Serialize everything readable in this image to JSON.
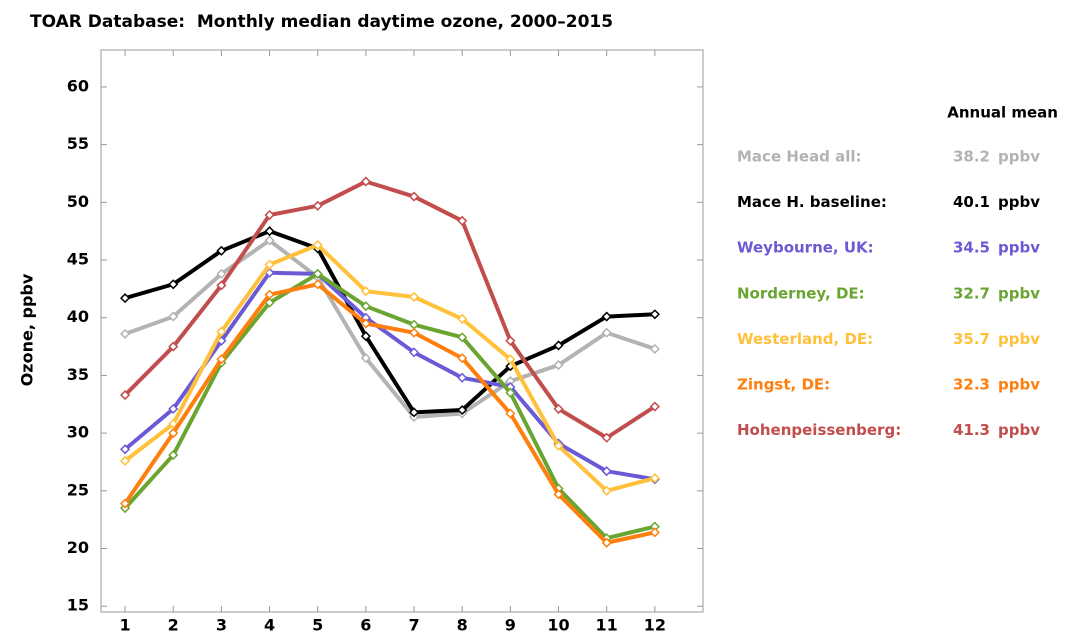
{
  "chart_data": {
    "type": "line",
    "title": "TOAR Database:  Monthly median daytime ozone, 2000–2015",
    "y_label": "Ozone, ppbv",
    "legend_title": "Annual mean",
    "annual_mean_unit": "ppbv",
    "x": [
      1,
      2,
      3,
      4,
      5,
      6,
      7,
      8,
      9,
      10,
      11,
      12
    ],
    "xlim": [
      0.5,
      13
    ],
    "xticks": [
      1,
      2,
      3,
      4,
      5,
      6,
      7,
      8,
      9,
      10,
      11,
      12
    ],
    "ylim": [
      14.5,
      63.2
    ],
    "yticks": [
      15,
      20,
      25,
      30,
      35,
      40,
      45,
      50,
      55,
      60
    ],
    "grid": false,
    "series": [
      {
        "name": "Mace Head all:",
        "color": "#b3b3b3",
        "annual_mean": 38.2,
        "values": [
          38.6,
          40.1,
          43.8,
          46.7,
          43.5,
          36.5,
          31.4,
          31.7,
          34.5,
          35.9,
          38.7,
          37.3
        ]
      },
      {
        "name": "Mace H. baseline:",
        "color": "#000000",
        "annual_mean": 40.1,
        "values": [
          41.7,
          42.9,
          45.8,
          47.5,
          46.0,
          38.4,
          31.8,
          32.0,
          35.8,
          37.6,
          40.1,
          40.3
        ]
      },
      {
        "name": "Weybourne, UK:",
        "color": "#6b5ad6",
        "annual_mean": 34.5,
        "values": [
          28.6,
          32.1,
          38.0,
          43.9,
          43.8,
          40.0,
          37.0,
          34.8,
          34.0,
          29.1,
          26.7,
          26.0
        ]
      },
      {
        "name": "Norderney, DE:",
        "color": "#6aa531",
        "annual_mean": 32.7,
        "values": [
          23.5,
          28.1,
          36.1,
          41.3,
          43.8,
          41.0,
          39.4,
          38.3,
          33.5,
          25.2,
          20.9,
          21.9
        ]
      },
      {
        "name": "Westerland, DE:",
        "color": "#ffc03a",
        "annual_mean": 35.7,
        "values": [
          27.6,
          30.8,
          38.8,
          44.6,
          46.3,
          42.3,
          41.8,
          39.9,
          36.4,
          28.9,
          25.0,
          26.1
        ]
      },
      {
        "name": "Zingst, DE:",
        "color": "#ff7f0e",
        "annual_mean": 32.3,
        "values": [
          23.9,
          30.0,
          36.4,
          42.0,
          42.9,
          39.5,
          38.7,
          36.5,
          31.7,
          24.7,
          20.5,
          21.4
        ]
      },
      {
        "name": "Hohenpeissenberg:",
        "color": "#c24d4d",
        "annual_mean": 41.3,
        "values": [
          33.3,
          37.5,
          42.8,
          48.9,
          49.7,
          51.8,
          50.5,
          48.4,
          38.0,
          32.1,
          29.6,
          32.3
        ]
      }
    ]
  }
}
